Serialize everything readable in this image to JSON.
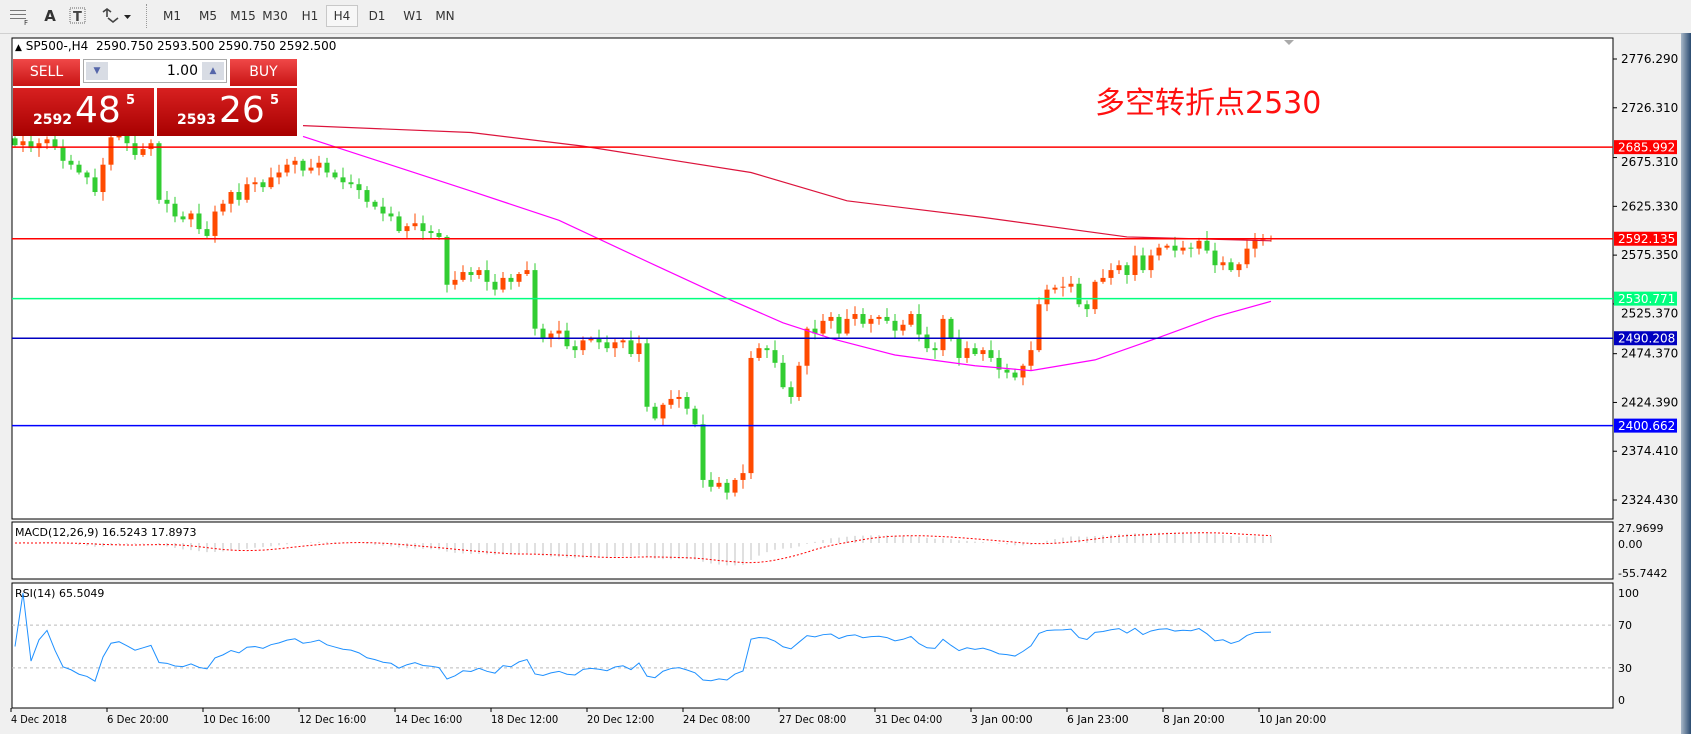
{
  "toolbar": {
    "tools": [
      {
        "icon": "grid-properties-icon",
        "label": ""
      },
      {
        "icon": "text-label-icon",
        "label": "A"
      },
      {
        "icon": "text-box-icon",
        "label": "T"
      },
      {
        "icon": "arrows-dropdown-icon",
        "label": "▾"
      }
    ],
    "timeframes": [
      "M1",
      "M5",
      "M15",
      "M30",
      "H1",
      "H4",
      "D1",
      "W1",
      "MN"
    ],
    "active_timeframe": "H4"
  },
  "chart_header": {
    "marker": "▲",
    "symbol": "SP500-,H4",
    "ohlc": "2590.750 2593.500 2590.750 2592.500"
  },
  "trade_panel": {
    "sell_label": "SELL",
    "buy_label": "BUY",
    "lot": "1.00",
    "sell_price": {
      "prefix": "2592",
      "big": "48",
      "sup": "5"
    },
    "buy_price": {
      "prefix": "2593",
      "big": "26",
      "sup": "5"
    }
  },
  "annotation": "多空转折点2530",
  "colors": {
    "up_candle": "#ff4a00",
    "down_candle": "#32cd32",
    "fast_ma": "#ff00ff",
    "slow_ma": "#dc143c",
    "rsi_line": "#1e90ff",
    "macd_hist": "#c0c0c0",
    "macd_signal": "#ff0000"
  },
  "chart_data": {
    "type": "candlestick",
    "symbol": "SP500-",
    "timeframe": "H4",
    "ylim": [
      2300,
      2800
    ],
    "price_ticks": [
      "2776.290",
      "2726.310",
      "2675.310",
      "2625.330",
      "2575.350",
      "2525.370",
      "2474.370",
      "2424.390",
      "2374.410",
      "2324.430"
    ],
    "time_labels": [
      "4 Dec 2018",
      "6 Dec 20:00",
      "10 Dec 16:00",
      "12 Dec 16:00",
      "14 Dec 16:00",
      "18 Dec 12:00",
      "20 Dec 12:00",
      "24 Dec 08:00",
      "27 Dec 08:00",
      "31 Dec 04:00",
      "3 Jan 00:00",
      "6 Jan 23:00",
      "8 Jan 20:00",
      "10 Jan 20:00"
    ],
    "first_open": 2695,
    "closes": [
      2688,
      2692,
      2685,
      2690,
      2694,
      2686,
      2672,
      2668,
      2660,
      2655,
      2640,
      2668,
      2696,
      2700,
      2690,
      2678,
      2684,
      2690,
      2632,
      2628,
      2615,
      2612,
      2618,
      2602,
      2595,
      2620,
      2628,
      2640,
      2632,
      2648,
      2650,
      2645,
      2655,
      2660,
      2668,
      2672,
      2662,
      2665,
      2670,
      2660,
      2655,
      2650,
      2648,
      2642,
      2630,
      2625,
      2618,
      2615,
      2600,
      2605,
      2608,
      2600,
      2598,
      2594,
      2545,
      2550,
      2558,
      2555,
      2560,
      2548,
      2540,
      2552,
      2548,
      2556,
      2560,
      2500,
      2490,
      2495,
      2498,
      2482,
      2478,
      2488,
      2490,
      2486,
      2480,
      2486,
      2488,
      2474,
      2485,
      2420,
      2408,
      2422,
      2428,
      2430,
      2418,
      2402,
      2345,
      2338,
      2342,
      2332,
      2345,
      2352,
      2470,
      2480,
      2478,
      2465,
      2440,
      2430,
      2462,
      2500,
      2495,
      2508,
      2512,
      2495,
      2510,
      2515,
      2505,
      2510,
      2512,
      2508,
      2498,
      2504,
      2515,
      2494,
      2480,
      2478,
      2510,
      2490,
      2470,
      2480,
      2474,
      2478,
      2470,
      2458,
      2455,
      2450,
      2462,
      2478,
      2525,
      2540,
      2542,
      2543,
      2546,
      2525,
      2520,
      2548,
      2552,
      2560,
      2565,
      2555,
      2575,
      2560,
      2575,
      2583,
      2585,
      2580,
      2583,
      2582,
      2590,
      2580,
      2565,
      2568,
      2560,
      2566,
      2582,
      2591,
      2592,
      2592.5
    ],
    "horizontal_lines": [
      {
        "value": "2685.992",
        "color": "#ff0000"
      },
      {
        "value": "2592.135",
        "color": "#ff0000"
      },
      {
        "value": "2530.771",
        "color": "#00ff7f"
      },
      {
        "value": "2490.208",
        "color": "#0000c0"
      },
      {
        "value": "2400.662",
        "color": "#0000ff"
      }
    ],
    "moving_averages": [
      {
        "color": "#ff00ff",
        "points": [
          [
            36,
            2697
          ],
          [
            57,
            2641
          ],
          [
            68,
            2611
          ],
          [
            80,
            2565
          ],
          [
            89,
            2531
          ],
          [
            96,
            2506
          ],
          [
            102,
            2490
          ],
          [
            110,
            2473
          ],
          [
            120,
            2462
          ],
          [
            127,
            2457
          ],
          [
            135,
            2468
          ],
          [
            143,
            2491
          ],
          [
            150,
            2512
          ],
          [
            157,
            2528
          ]
        ]
      },
      {
        "color": "#dc143c",
        "points": [
          [
            36,
            2708
          ],
          [
            57,
            2701
          ],
          [
            71,
            2687
          ],
          [
            92,
            2660
          ],
          [
            104,
            2631
          ],
          [
            121,
            2614
          ],
          [
            139,
            2594
          ],
          [
            157,
            2590
          ]
        ]
      }
    ],
    "macd": {
      "label": "MACD(12,26,9) 16.5243 17.8973",
      "axis": [
        "27.9699",
        "0.00",
        "-55.7442"
      ],
      "ylim": [
        -55.7442,
        27.9699
      ]
    },
    "rsi": {
      "label": "RSI(14) 65.5049",
      "axis": [
        "100",
        "70",
        "30",
        "0"
      ],
      "levels": [
        70,
        30
      ],
      "ylim": [
        0,
        100
      ]
    }
  }
}
